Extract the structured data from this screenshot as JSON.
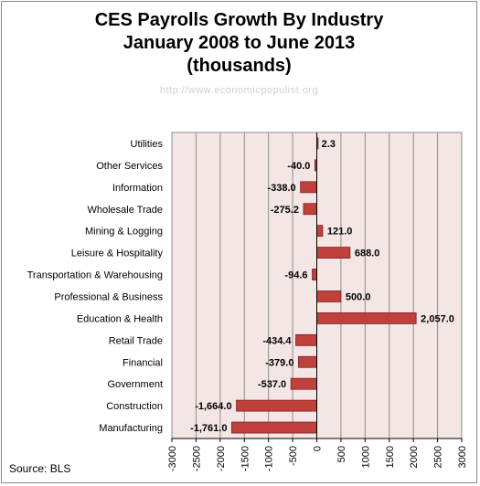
{
  "title_lines": [
    "CES Payrolls Growth By Industry",
    "January 2008 to June 2013",
    "(thousands)"
  ],
  "watermark": "http://www.economicpopulist.org",
  "source": "Source:  BLS",
  "colors": {
    "bar": "#c0413c",
    "bar_stroke": "#7a1f1c",
    "plot_bg": "#f5e6e6",
    "grid": "#8c8c8c"
  },
  "chart_data": {
    "type": "bar",
    "orientation": "horizontal",
    "title": "CES Payrolls Growth By Industry January 2008 to June 2013 (thousands)",
    "categories": [
      "Utilities",
      "Other Services",
      "Information",
      "Wholesale Trade",
      "Mining & Logging",
      "Leisure & Hospitality",
      "Transportation & Warehousing",
      "Professional & Business",
      "Education & Health",
      "Retail Trade",
      "Financial",
      "Government",
      "Construction",
      "Manufacturing"
    ],
    "values": [
      2.3,
      -40.0,
      -338.0,
      -275.2,
      121.0,
      688.0,
      -94.6,
      500.0,
      2057.0,
      -434.4,
      -379.0,
      -537.0,
      -1664.0,
      -1761.0
    ],
    "value_labels": [
      "2.3",
      "-40.0",
      "-338.0",
      "-275.2",
      "121.0",
      "688.0",
      "-94.6",
      "500.0",
      "2,057.0",
      "-434.4",
      "-379.0",
      "-537.0",
      "-1,664.0",
      "-1,761.0"
    ],
    "xlim": [
      -3000,
      3000
    ],
    "xticks": [
      -3000,
      -2500,
      -2000,
      -1500,
      -1000,
      -500,
      0,
      500,
      1000,
      1500,
      2000,
      2500,
      3000
    ],
    "xtick_labels": [
      "-3000",
      "-2500",
      "-2000",
      "-1500",
      "-1000",
      "-500",
      "0",
      "500",
      "1000",
      "1500",
      "2000",
      "2500",
      "3000"
    ],
    "grid": true,
    "xlabel": "",
    "ylabel": ""
  }
}
